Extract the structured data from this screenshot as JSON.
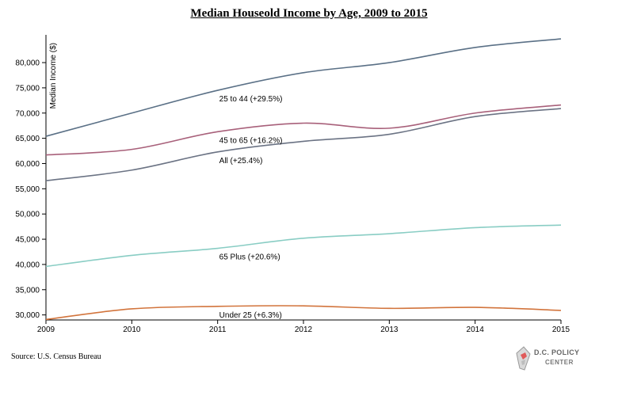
{
  "chart_data": {
    "type": "line",
    "title": "Median Houseold Income by Age, 2009 to 2015",
    "ylabel": "Median Income ($)",
    "xlabel": "",
    "x": [
      2009,
      2010,
      2011,
      2012,
      2013,
      2014,
      2015
    ],
    "xlim": [
      2009,
      2015
    ],
    "ylim": [
      29000,
      85500
    ],
    "yticks": [
      30000,
      35000,
      40000,
      45000,
      50000,
      55000,
      60000,
      65000,
      70000,
      75000,
      80000
    ],
    "ytick_labels": [
      "30,000",
      "35,000",
      "40,000",
      "45,000",
      "50,000",
      "55,000",
      "60,000",
      "65,000",
      "70,000",
      "75,000",
      "80,000"
    ],
    "xtick_labels": [
      "2009",
      "2010",
      "2011",
      "2012",
      "2013",
      "2014",
      "2015"
    ],
    "grid": false,
    "legend": "none",
    "series": [
      {
        "name": "25 to 44 (+29.5%)",
        "color": "#5a7086",
        "values": [
          65400,
          70000,
          74500,
          78000,
          80000,
          83000,
          84700
        ],
        "label_x": 2011
      },
      {
        "name": "45 to 65 (+16.2%)",
        "color": "#a8607a",
        "values": [
          61700,
          62800,
          66300,
          68000,
          67000,
          70000,
          71600
        ],
        "label_x": 2011
      },
      {
        "name": "All (+25.4%)",
        "color": "#6b7384",
        "values": [
          56600,
          58700,
          62300,
          64400,
          65800,
          69300,
          70900
        ],
        "label_x": 2011
      },
      {
        "name": "65 Plus (+20.6%)",
        "color": "#89cdc4",
        "values": [
          39600,
          41800,
          43200,
          45200,
          46100,
          47300,
          47800
        ],
        "label_x": 2011
      },
      {
        "name": "Under 25 (+6.3%)",
        "color": "#d2743c",
        "values": [
          29100,
          31200,
          31700,
          31800,
          31300,
          31500,
          30900
        ],
        "label_x": 2011
      }
    ]
  },
  "footer": {
    "source": "Source: U.S. Census Bureau",
    "logo_line1": "D.C. POLICY",
    "logo_line2": "CENTER"
  }
}
